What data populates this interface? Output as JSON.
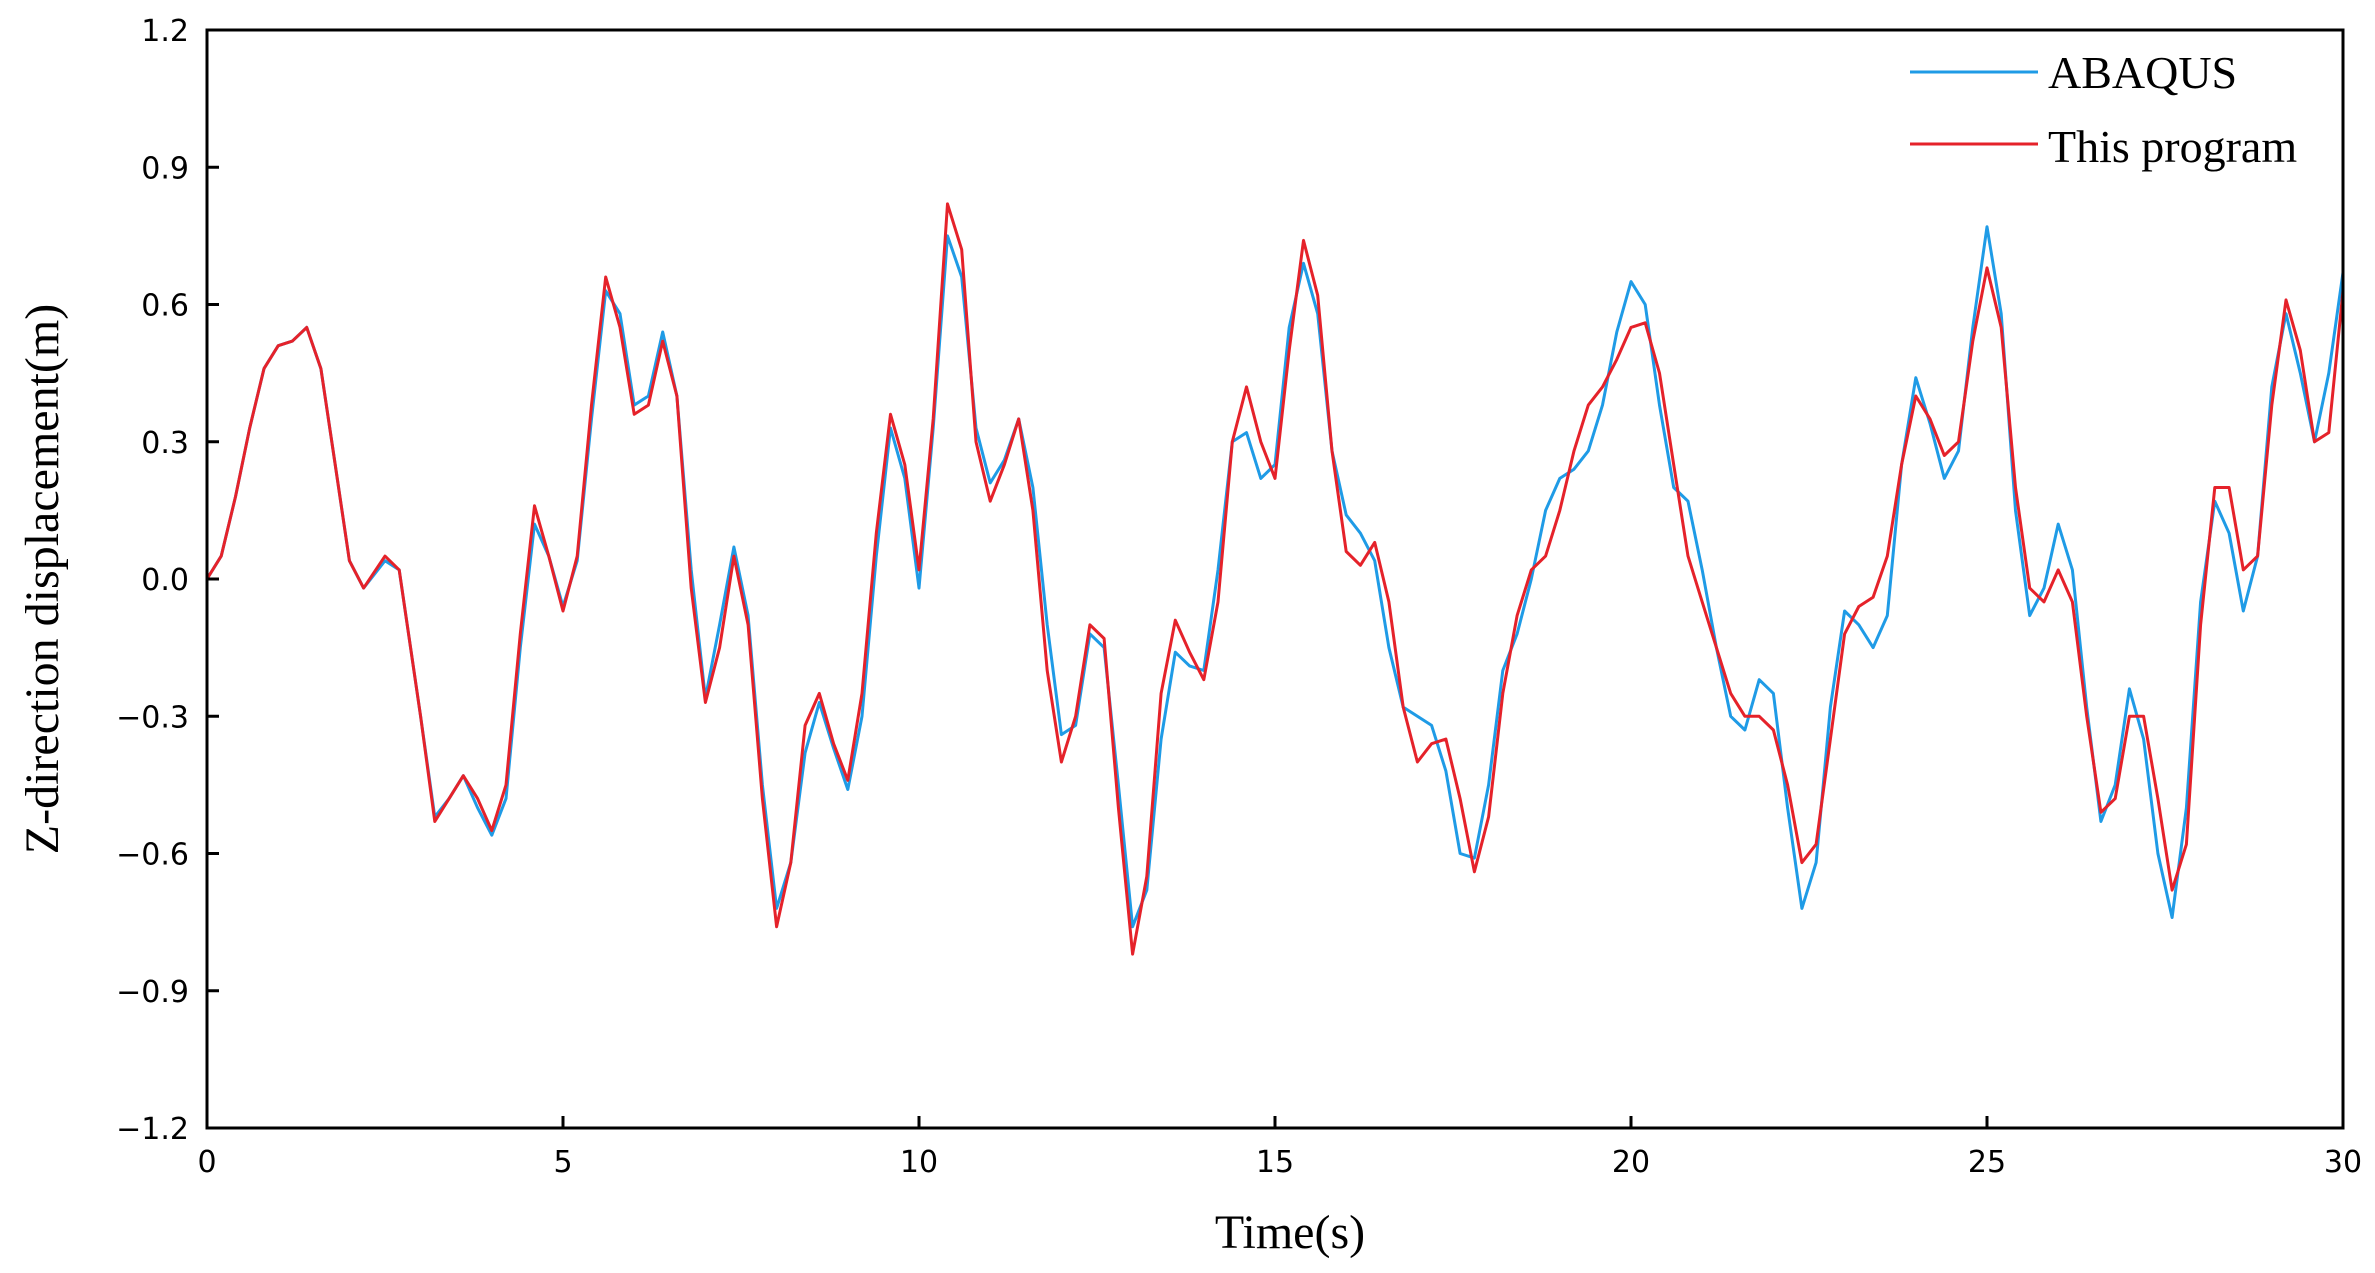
{
  "chart_data": {
    "type": "line",
    "xlabel": "Time(s)",
    "ylabel": "Z-direction displacement(m)",
    "xlim": [
      0,
      30
    ],
    "ylim": [
      -1.2,
      1.2
    ],
    "xticks": [
      0,
      5,
      10,
      15,
      20,
      25,
      30
    ],
    "xtick_labels": [
      "0",
      "5",
      "10",
      "15",
      "20",
      "25",
      "30"
    ],
    "yticks": [
      -1.2,
      -0.9,
      -0.6,
      -0.3,
      0.0,
      0.3,
      0.6,
      0.9,
      1.2
    ],
    "ytick_labels": [
      "−1.2",
      "−0.9",
      "−0.6",
      "−0.3",
      "0.0",
      "0.3",
      "0.6",
      "0.9",
      "1.2"
    ],
    "grid": false,
    "legend_position": "top-right",
    "series": [
      {
        "name": "ABAQUS",
        "color": "#1f9be6",
        "points": [
          [
            0,
            0.0
          ],
          [
            0.2,
            0.05
          ],
          [
            0.4,
            0.18
          ],
          [
            0.6,
            0.33
          ],
          [
            0.8,
            0.46
          ],
          [
            1.0,
            0.51
          ],
          [
            1.2,
            0.52
          ],
          [
            1.4,
            0.55
          ],
          [
            1.6,
            0.46
          ],
          [
            1.8,
            0.25
          ],
          [
            2.0,
            0.04
          ],
          [
            2.2,
            -0.02
          ],
          [
            2.5,
            0.04
          ],
          [
            2.7,
            0.02
          ],
          [
            3.0,
            -0.3
          ],
          [
            3.2,
            -0.52
          ],
          [
            3.4,
            -0.48
          ],
          [
            3.6,
            -0.43
          ],
          [
            3.8,
            -0.5
          ],
          [
            4.0,
            -0.56
          ],
          [
            4.2,
            -0.48
          ],
          [
            4.4,
            -0.15
          ],
          [
            4.6,
            0.12
          ],
          [
            4.8,
            0.05
          ],
          [
            5.0,
            -0.06
          ],
          [
            5.2,
            0.04
          ],
          [
            5.4,
            0.35
          ],
          [
            5.6,
            0.63
          ],
          [
            5.8,
            0.58
          ],
          [
            6.0,
            0.38
          ],
          [
            6.2,
            0.4
          ],
          [
            6.4,
            0.54
          ],
          [
            6.6,
            0.4
          ],
          [
            6.8,
            0.02
          ],
          [
            7.0,
            -0.26
          ],
          [
            7.2,
            -0.1
          ],
          [
            7.4,
            0.07
          ],
          [
            7.6,
            -0.08
          ],
          [
            7.8,
            -0.45
          ],
          [
            8.0,
            -0.72
          ],
          [
            8.2,
            -0.62
          ],
          [
            8.4,
            -0.38
          ],
          [
            8.6,
            -0.27
          ],
          [
            8.8,
            -0.37
          ],
          [
            9.0,
            -0.46
          ],
          [
            9.2,
            -0.3
          ],
          [
            9.4,
            0.05
          ],
          [
            9.6,
            0.33
          ],
          [
            9.8,
            0.22
          ],
          [
            10.0,
            -0.02
          ],
          [
            10.2,
            0.33
          ],
          [
            10.4,
            0.75
          ],
          [
            10.6,
            0.66
          ],
          [
            10.8,
            0.33
          ],
          [
            11.0,
            0.21
          ],
          [
            11.2,
            0.26
          ],
          [
            11.4,
            0.35
          ],
          [
            11.6,
            0.2
          ],
          [
            11.8,
            -0.1
          ],
          [
            12.0,
            -0.34
          ],
          [
            12.2,
            -0.32
          ],
          [
            12.4,
            -0.12
          ],
          [
            12.6,
            -0.15
          ],
          [
            12.8,
            -0.45
          ],
          [
            13.0,
            -0.76
          ],
          [
            13.2,
            -0.68
          ],
          [
            13.4,
            -0.35
          ],
          [
            13.6,
            -0.16
          ],
          [
            13.8,
            -0.19
          ],
          [
            14.0,
            -0.2
          ],
          [
            14.2,
            0.02
          ],
          [
            14.4,
            0.3
          ],
          [
            14.6,
            0.32
          ],
          [
            14.8,
            0.22
          ],
          [
            15.0,
            0.25
          ],
          [
            15.2,
            0.55
          ],
          [
            15.4,
            0.69
          ],
          [
            15.6,
            0.58
          ],
          [
            15.8,
            0.28
          ],
          [
            16.0,
            0.14
          ],
          [
            16.2,
            0.1
          ],
          [
            16.4,
            0.04
          ],
          [
            16.6,
            -0.15
          ],
          [
            16.8,
            -0.28
          ],
          [
            17.0,
            -0.3
          ],
          [
            17.2,
            -0.32
          ],
          [
            17.4,
            -0.42
          ],
          [
            17.6,
            -0.6
          ],
          [
            17.8,
            -0.61
          ],
          [
            18.0,
            -0.45
          ],
          [
            18.2,
            -0.2
          ],
          [
            18.4,
            -0.12
          ],
          [
            18.6,
            0.0
          ],
          [
            18.8,
            0.15
          ],
          [
            19.0,
            0.22
          ],
          [
            19.2,
            0.24
          ],
          [
            19.4,
            0.28
          ],
          [
            19.6,
            0.38
          ],
          [
            19.8,
            0.54
          ],
          [
            20.0,
            0.65
          ],
          [
            20.2,
            0.6
          ],
          [
            20.4,
            0.38
          ],
          [
            20.6,
            0.2
          ],
          [
            20.8,
            0.17
          ],
          [
            21.0,
            0.02
          ],
          [
            21.2,
            -0.15
          ],
          [
            21.4,
            -0.3
          ],
          [
            21.6,
            -0.33
          ],
          [
            21.8,
            -0.22
          ],
          [
            22.0,
            -0.25
          ],
          [
            22.2,
            -0.5
          ],
          [
            22.4,
            -0.72
          ],
          [
            22.6,
            -0.62
          ],
          [
            22.8,
            -0.28
          ],
          [
            23.0,
            -0.07
          ],
          [
            23.2,
            -0.1
          ],
          [
            23.4,
            -0.15
          ],
          [
            23.6,
            -0.08
          ],
          [
            23.8,
            0.25
          ],
          [
            24.0,
            0.44
          ],
          [
            24.2,
            0.34
          ],
          [
            24.4,
            0.22
          ],
          [
            24.6,
            0.28
          ],
          [
            24.8,
            0.55
          ],
          [
            25.0,
            0.77
          ],
          [
            25.2,
            0.58
          ],
          [
            25.4,
            0.15
          ],
          [
            25.6,
            -0.08
          ],
          [
            25.8,
            -0.02
          ],
          [
            26.0,
            0.12
          ],
          [
            26.2,
            0.02
          ],
          [
            26.4,
            -0.28
          ],
          [
            26.6,
            -0.53
          ],
          [
            26.8,
            -0.45
          ],
          [
            27.0,
            -0.24
          ],
          [
            27.2,
            -0.35
          ],
          [
            27.4,
            -0.6
          ],
          [
            27.6,
            -0.74
          ],
          [
            27.8,
            -0.5
          ],
          [
            28.0,
            -0.05
          ],
          [
            28.2,
            0.17
          ],
          [
            28.4,
            0.1
          ],
          [
            28.6,
            -0.07
          ],
          [
            28.8,
            0.05
          ],
          [
            29.0,
            0.42
          ],
          [
            29.2,
            0.58
          ],
          [
            29.4,
            0.45
          ],
          [
            29.6,
            0.3
          ],
          [
            29.8,
            0.45
          ],
          [
            30.0,
            0.67
          ],
          [
            30.2,
            0.47
          ]
        ]
      },
      {
        "name": "This program",
        "color": "#e5222a",
        "points": [
          [
            0,
            0.0
          ],
          [
            0.2,
            0.05
          ],
          [
            0.4,
            0.18
          ],
          [
            0.6,
            0.33
          ],
          [
            0.8,
            0.46
          ],
          [
            1.0,
            0.51
          ],
          [
            1.2,
            0.52
          ],
          [
            1.4,
            0.55
          ],
          [
            1.6,
            0.46
          ],
          [
            1.8,
            0.25
          ],
          [
            2.0,
            0.04
          ],
          [
            2.2,
            -0.02
          ],
          [
            2.5,
            0.05
          ],
          [
            2.7,
            0.02
          ],
          [
            3.0,
            -0.3
          ],
          [
            3.2,
            -0.53
          ],
          [
            3.4,
            -0.48
          ],
          [
            3.6,
            -0.43
          ],
          [
            3.8,
            -0.48
          ],
          [
            4.0,
            -0.55
          ],
          [
            4.2,
            -0.45
          ],
          [
            4.4,
            -0.12
          ],
          [
            4.6,
            0.16
          ],
          [
            4.8,
            0.05
          ],
          [
            5.0,
            -0.07
          ],
          [
            5.2,
            0.05
          ],
          [
            5.4,
            0.38
          ],
          [
            5.6,
            0.66
          ],
          [
            5.8,
            0.55
          ],
          [
            6.0,
            0.36
          ],
          [
            6.2,
            0.38
          ],
          [
            6.4,
            0.52
          ],
          [
            6.6,
            0.4
          ],
          [
            6.8,
            -0.02
          ],
          [
            7.0,
            -0.27
          ],
          [
            7.2,
            -0.15
          ],
          [
            7.4,
            0.05
          ],
          [
            7.6,
            -0.1
          ],
          [
            7.8,
            -0.48
          ],
          [
            8.0,
            -0.76
          ],
          [
            8.2,
            -0.62
          ],
          [
            8.4,
            -0.32
          ],
          [
            8.6,
            -0.25
          ],
          [
            8.8,
            -0.36
          ],
          [
            9.0,
            -0.44
          ],
          [
            9.2,
            -0.25
          ],
          [
            9.4,
            0.1
          ],
          [
            9.6,
            0.36
          ],
          [
            9.8,
            0.25
          ],
          [
            10.0,
            0.02
          ],
          [
            10.2,
            0.35
          ],
          [
            10.4,
            0.82
          ],
          [
            10.6,
            0.72
          ],
          [
            10.8,
            0.3
          ],
          [
            11.0,
            0.17
          ],
          [
            11.2,
            0.25
          ],
          [
            11.4,
            0.35
          ],
          [
            11.6,
            0.15
          ],
          [
            11.8,
            -0.2
          ],
          [
            12.0,
            -0.4
          ],
          [
            12.2,
            -0.3
          ],
          [
            12.4,
            -0.1
          ],
          [
            12.6,
            -0.13
          ],
          [
            12.8,
            -0.5
          ],
          [
            13.0,
            -0.82
          ],
          [
            13.2,
            -0.65
          ],
          [
            13.4,
            -0.25
          ],
          [
            13.6,
            -0.09
          ],
          [
            13.8,
            -0.16
          ],
          [
            14.0,
            -0.22
          ],
          [
            14.2,
            -0.05
          ],
          [
            14.4,
            0.3
          ],
          [
            14.6,
            0.42
          ],
          [
            14.8,
            0.3
          ],
          [
            15.0,
            0.22
          ],
          [
            15.2,
            0.5
          ],
          [
            15.4,
            0.74
          ],
          [
            15.6,
            0.62
          ],
          [
            15.8,
            0.28
          ],
          [
            16.0,
            0.06
          ],
          [
            16.2,
            0.03
          ],
          [
            16.4,
            0.08
          ],
          [
            16.6,
            -0.05
          ],
          [
            16.8,
            -0.28
          ],
          [
            17.0,
            -0.4
          ],
          [
            17.2,
            -0.36
          ],
          [
            17.4,
            -0.35
          ],
          [
            17.6,
            -0.48
          ],
          [
            17.8,
            -0.64
          ],
          [
            18.0,
            -0.52
          ],
          [
            18.2,
            -0.25
          ],
          [
            18.4,
            -0.08
          ],
          [
            18.6,
            0.02
          ],
          [
            18.8,
            0.05
          ],
          [
            19.0,
            0.15
          ],
          [
            19.2,
            0.28
          ],
          [
            19.4,
            0.38
          ],
          [
            19.6,
            0.42
          ],
          [
            19.8,
            0.48
          ],
          [
            20.0,
            0.55
          ],
          [
            20.2,
            0.56
          ],
          [
            20.4,
            0.45
          ],
          [
            20.6,
            0.25
          ],
          [
            20.8,
            0.05
          ],
          [
            21.0,
            -0.05
          ],
          [
            21.2,
            -0.15
          ],
          [
            21.4,
            -0.25
          ],
          [
            21.6,
            -0.3
          ],
          [
            21.8,
            -0.3
          ],
          [
            22.0,
            -0.33
          ],
          [
            22.2,
            -0.45
          ],
          [
            22.4,
            -0.62
          ],
          [
            22.6,
            -0.58
          ],
          [
            22.8,
            -0.35
          ],
          [
            23.0,
            -0.12
          ],
          [
            23.2,
            -0.06
          ],
          [
            23.4,
            -0.04
          ],
          [
            23.6,
            0.05
          ],
          [
            23.8,
            0.25
          ],
          [
            24.0,
            0.4
          ],
          [
            24.2,
            0.35
          ],
          [
            24.4,
            0.27
          ],
          [
            24.6,
            0.3
          ],
          [
            24.8,
            0.52
          ],
          [
            25.0,
            0.68
          ],
          [
            25.2,
            0.55
          ],
          [
            25.4,
            0.2
          ],
          [
            25.6,
            -0.02
          ],
          [
            25.8,
            -0.05
          ],
          [
            26.0,
            0.02
          ],
          [
            26.2,
            -0.05
          ],
          [
            26.4,
            -0.3
          ],
          [
            26.6,
            -0.51
          ],
          [
            26.8,
            -0.48
          ],
          [
            27.0,
            -0.3
          ],
          [
            27.2,
            -0.3
          ],
          [
            27.4,
            -0.48
          ],
          [
            27.6,
            -0.68
          ],
          [
            27.8,
            -0.58
          ],
          [
            28.0,
            -0.1
          ],
          [
            28.2,
            0.2
          ],
          [
            28.4,
            0.2
          ],
          [
            28.6,
            0.02
          ],
          [
            28.8,
            0.05
          ],
          [
            29.0,
            0.38
          ],
          [
            29.2,
            0.61
          ],
          [
            29.4,
            0.5
          ],
          [
            29.6,
            0.3
          ],
          [
            29.8,
            0.32
          ],
          [
            30.0,
            0.63
          ]
        ]
      }
    ]
  }
}
